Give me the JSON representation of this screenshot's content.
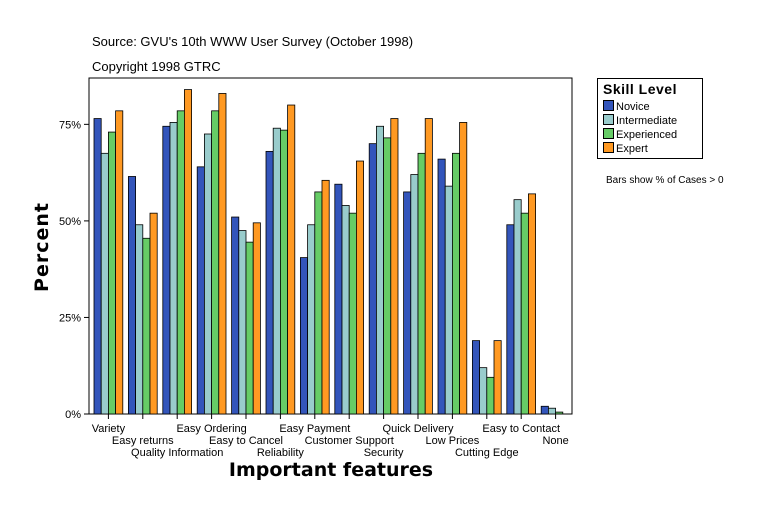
{
  "source": "Source: GVU's 10th WWW User Survey (October 1998)",
  "copyright": "Copyright 1998 GTRC",
  "note": "Bars show % of Cases > 0",
  "legend": {
    "title": "Skill Level",
    "items": [
      {
        "label": "Novice",
        "color": "#3355bb"
      },
      {
        "label": "Intermediate",
        "color": "#99cccc"
      },
      {
        "label": "Experienced",
        "color": "#66cc66"
      },
      {
        "label": "Expert",
        "color": "#ff9922"
      }
    ]
  },
  "chart_data": {
    "type": "bar",
    "xlabel": "Important features",
    "ylabel": "Percent",
    "ylim": [
      0,
      87
    ],
    "yticks": [
      0,
      25,
      50,
      75
    ],
    "ytick_labels": [
      "0%",
      "25%",
      "50%",
      "75%"
    ],
    "categories": [
      "Variety",
      "Easy returns",
      "Quality Information",
      "Easy Ordering",
      "Easy to Cancel",
      "Reliability",
      "Easy Payment",
      "Customer Support",
      "Security",
      "Quick Delivery",
      "Low Prices",
      "Cutting Edge",
      "Easy to Contact",
      "None"
    ],
    "series": [
      {
        "name": "Novice",
        "values": [
          76.5,
          61.5,
          74.5,
          64,
          51,
          68,
          40.5,
          59.5,
          70,
          57.5,
          66,
          19,
          49,
          2
        ]
      },
      {
        "name": "Intermediate",
        "values": [
          67.5,
          49,
          75.5,
          72.5,
          47.5,
          74,
          49,
          54,
          74.5,
          62,
          59,
          12,
          55.5,
          1.5
        ]
      },
      {
        "name": "Experienced",
        "values": [
          73,
          45.5,
          78.5,
          78.5,
          44.5,
          73.5,
          57.5,
          52,
          71.5,
          67.5,
          67.5,
          9.5,
          52,
          0.5
        ]
      },
      {
        "name": "Expert",
        "values": [
          78.5,
          52,
          84,
          83,
          49.5,
          80,
          60.5,
          65.5,
          76.5,
          76.5,
          75.5,
          19,
          57,
          0
        ]
      }
    ]
  }
}
